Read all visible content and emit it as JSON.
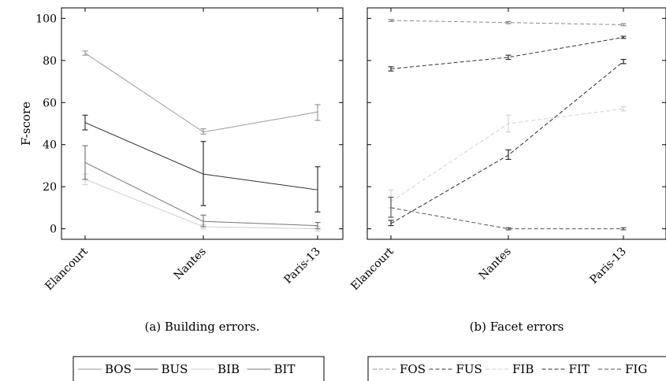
{
  "chart_data": [
    {
      "type": "line",
      "caption": "(a) Building errors.",
      "xlabel": "",
      "ylabel": "F-score",
      "categories": [
        "Elancourt",
        "Nantes",
        "Paris-13"
      ],
      "ylim": [
        -5,
        105
      ],
      "yticks": [
        0,
        20,
        40,
        60,
        80,
        100
      ],
      "grid": false,
      "legend": "below",
      "series": [
        {
          "name": "BOS",
          "color": "#9a9a9a",
          "dash": "solid",
          "values": [
            83.5,
            46,
            55.5
          ],
          "err_lo": [
            82.5,
            45,
            51.5
          ],
          "err_hi": [
            84.5,
            47.5,
            59
          ]
        },
        {
          "name": "BUS",
          "color": "#333333",
          "dash": "solid",
          "values": [
            50.5,
            26,
            18.5
          ],
          "err_lo": [
            47,
            11,
            8
          ],
          "err_hi": [
            54,
            41.5,
            29.5
          ]
        },
        {
          "name": "BIB",
          "color": "#cfcfcf",
          "dash": "solid",
          "values": [
            23.5,
            1,
            0
          ],
          "err_lo": [
            21,
            0,
            -1
          ],
          "err_hi": [
            26,
            2,
            1
          ]
        },
        {
          "name": "BIT",
          "color": "#777777",
          "dash": "solid",
          "values": [
            31.5,
            3.5,
            1.5
          ],
          "err_lo": [
            23.5,
            1,
            0
          ],
          "err_hi": [
            39.5,
            6.5,
            3
          ]
        }
      ]
    },
    {
      "type": "line",
      "caption": "(b) Facet errors",
      "xlabel": "",
      "ylabel": "",
      "categories": [
        "Elancourt",
        "Nantes",
        "Paris-13"
      ],
      "ylim": [
        -5,
        105
      ],
      "yticks": [
        0,
        20,
        40,
        60,
        80,
        100
      ],
      "grid": false,
      "legend": "below",
      "series": [
        {
          "name": "FOS",
          "color": "#8c8c8c",
          "dash": "dashed",
          "values": [
            99,
            98,
            97
          ],
          "err_lo": [
            98.5,
            97.5,
            96.5
          ],
          "err_hi": [
            99.5,
            98.5,
            97.5
          ]
        },
        {
          "name": "FUS",
          "color": "#333333",
          "dash": "dashed",
          "values": [
            76,
            81.5,
            91
          ],
          "err_lo": [
            75,
            80.5,
            90.5
          ],
          "err_hi": [
            77,
            82.5,
            91.5
          ]
        },
        {
          "name": "FIB",
          "color": "#d2d2d2",
          "dash": "dashed",
          "values": [
            13,
            50,
            57
          ],
          "err_lo": [
            10,
            46,
            56
          ],
          "err_hi": [
            18.5,
            54,
            58
          ]
        },
        {
          "name": "FIT",
          "color": "#2a2a2a",
          "dash": "dashed",
          "values": [
            2.5,
            35,
            79.5
          ],
          "err_lo": [
            1.5,
            33,
            78.5
          ],
          "err_hi": [
            4,
            37.5,
            80.5
          ]
        },
        {
          "name": "FIG",
          "color": "#555555",
          "dash": "dashed",
          "values": [
            10,
            0,
            0
          ],
          "err_lo": [
            5.5,
            -0.5,
            -0.5
          ],
          "err_hi": [
            15,
            0.5,
            0.5
          ]
        }
      ]
    }
  ]
}
